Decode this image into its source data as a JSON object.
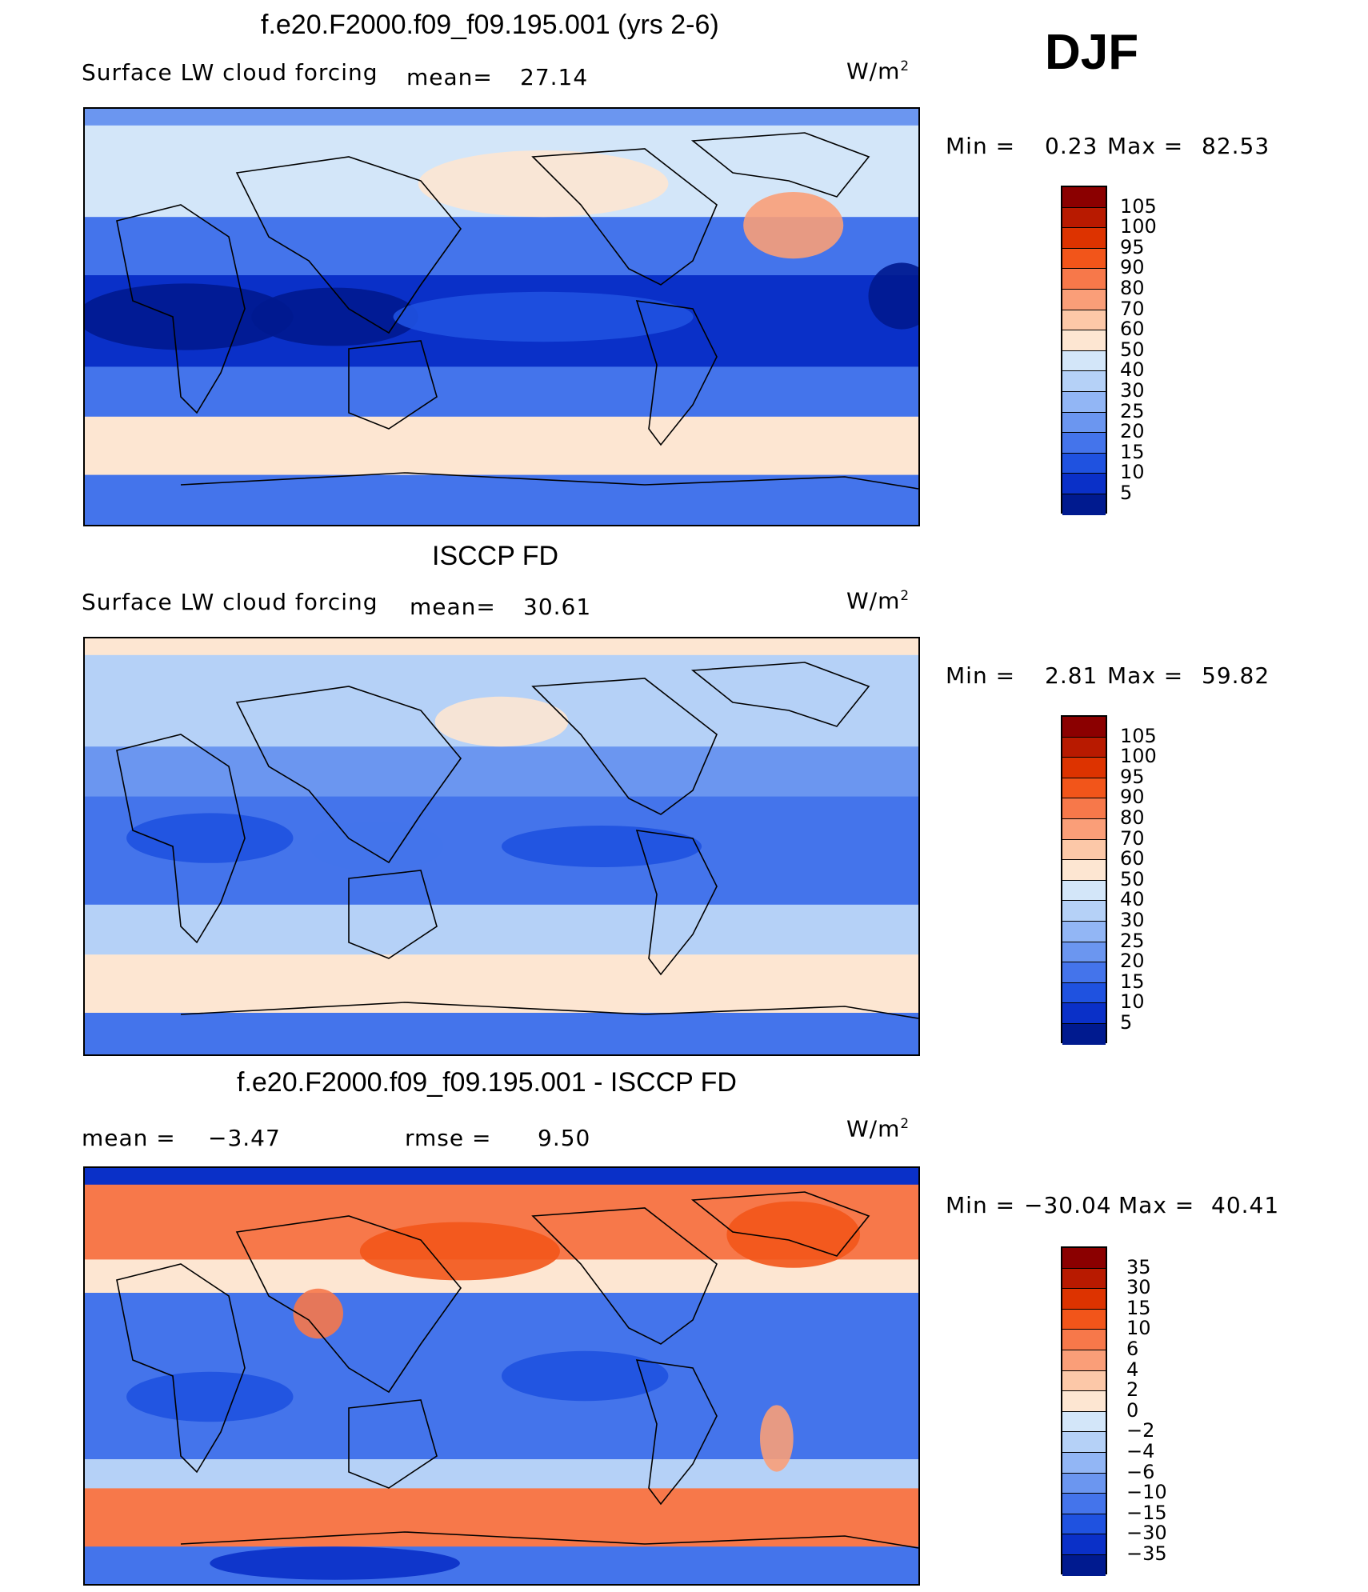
{
  "season": "DJF",
  "units": "W/m",
  "units_sup": "2",
  "panels": [
    {
      "title": "f.e20.F2000.f09_f09.195.001 (yrs 2-6)",
      "subtitle": "Surface  LW  cloud  forcing",
      "mean_label": "mean=",
      "mean": "27.14",
      "min_label": "Min  =",
      "min": "0.23",
      "max_label": "Max  =",
      "max": "82.53"
    },
    {
      "title": "ISCCP FD",
      "subtitle": "Surface  LW  cloud  forcing",
      "mean_label": "mean=",
      "mean": "30.61",
      "min_label": "Min  =",
      "min": "2.81",
      "max_label": "Max  =",
      "max": "59.82"
    },
    {
      "title": "f.e20.F2000.f09_f09.195.001 - ISCCP FD",
      "mean_label": "mean  =",
      "mean": "−3.47",
      "rmse_label": "rmse  =",
      "rmse": "9.50",
      "min_label": "Min  =",
      "min": "−30.04",
      "max_label": "Max  =",
      "max": "40.41"
    }
  ],
  "chart_data": [
    {
      "type": "heatmap",
      "title": "f.e20.F2000.f09_f09.195.001 (yrs 2-6)",
      "variable": "Surface LW cloud forcing",
      "units": "W/m2",
      "mean": 27.14,
      "min": 0.23,
      "max": 82.53,
      "colorbar_levels": [
        "105",
        "100",
        "95",
        "90",
        "80",
        "70",
        "60",
        "50",
        "40",
        "30",
        "25",
        "20",
        "15",
        "10",
        "5"
      ],
      "colorbar_colors": [
        "#8b0000",
        "#b81a00",
        "#dd3300",
        "#f2551a",
        "#f7784a",
        "#fa9e78",
        "#fcc8a8",
        "#fde6d2",
        "#d3e6f9",
        "#b5d1f7",
        "#92b6f5",
        "#6b96f0",
        "#4474eb",
        "#1f52e0",
        "#0a30c8",
        "#001a8f"
      ]
    },
    {
      "type": "heatmap",
      "title": "ISCCP FD",
      "variable": "Surface LW cloud forcing",
      "units": "W/m2",
      "mean": 30.61,
      "min": 2.81,
      "max": 59.82,
      "colorbar_levels": [
        "105",
        "100",
        "95",
        "90",
        "80",
        "70",
        "60",
        "50",
        "40",
        "30",
        "25",
        "20",
        "15",
        "10",
        "5"
      ],
      "colorbar_colors": [
        "#8b0000",
        "#b81a00",
        "#dd3300",
        "#f2551a",
        "#f7784a",
        "#fa9e78",
        "#fcc8a8",
        "#fde6d2",
        "#d3e6f9",
        "#b5d1f7",
        "#92b6f5",
        "#6b96f0",
        "#4474eb",
        "#1f52e0",
        "#0a30c8",
        "#001a8f"
      ]
    },
    {
      "type": "heatmap",
      "title": "f.e20.F2000.f09_f09.195.001 - ISCCP FD",
      "units": "W/m2",
      "mean": -3.47,
      "rmse": 9.5,
      "min": -30.04,
      "max": 40.41,
      "colorbar_levels": [
        "35",
        "30",
        "15",
        "10",
        "6",
        "4",
        "2",
        "0",
        "−2",
        "−4",
        "−6",
        "−10",
        "−15",
        "−30",
        "−35"
      ],
      "colorbar_colors": [
        "#8b0000",
        "#b81a00",
        "#dd3300",
        "#f2551a",
        "#f7784a",
        "#fa9e78",
        "#fcc8a8",
        "#fde6d2",
        "#d3e6f9",
        "#b5d1f7",
        "#92b6f5",
        "#6b96f0",
        "#4474eb",
        "#1f52e0",
        "#0a30c8",
        "#001a8f"
      ]
    }
  ]
}
